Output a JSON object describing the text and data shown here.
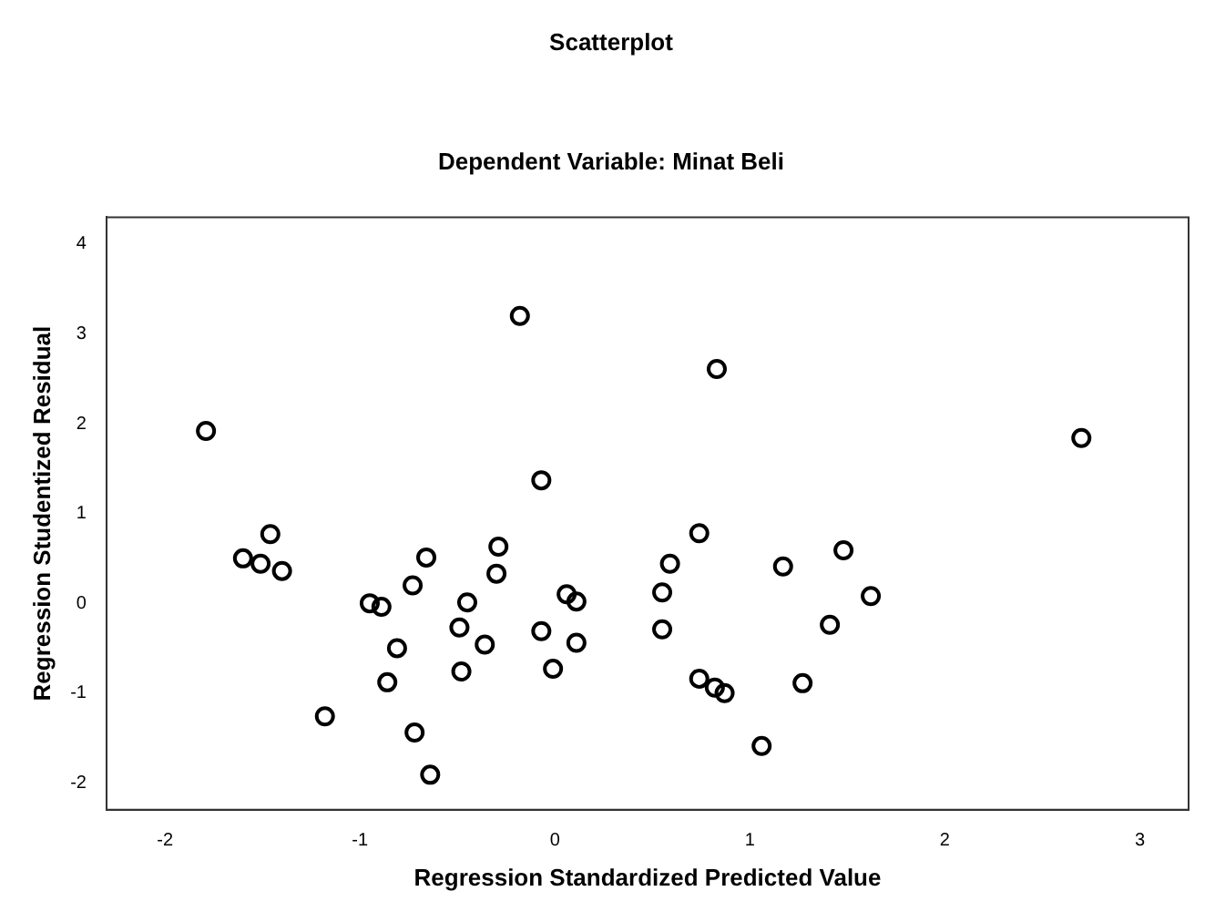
{
  "chart_data": {
    "type": "scatter",
    "title": "Scatterplot",
    "subtitle": "Dependent Variable: Minat Beli",
    "xlabel": "Regression Standardized Predicted Value",
    "ylabel": "Regression Studentized Residual",
    "x": [
      -1.79,
      -1.6,
      -1.51,
      -1.46,
      -1.4,
      -1.18,
      -0.95,
      -0.89,
      -0.86,
      -0.81,
      -0.73,
      -0.72,
      -0.66,
      -0.64,
      -0.49,
      -0.48,
      -0.45,
      -0.36,
      -0.3,
      -0.29,
      -0.18,
      -0.07,
      -0.07,
      -0.01,
      0.06,
      0.11,
      0.11,
      0.83,
      0.74,
      0.59,
      0.55,
      0.55,
      0.74,
      0.82,
      0.87,
      1.06,
      1.17,
      1.27,
      1.41,
      1.48,
      1.62,
      2.7
    ],
    "values": [
      1.92,
      0.5,
      0.44,
      0.77,
      0.36,
      -1.26,
      0.0,
      -0.04,
      -0.88,
      -0.5,
      0.2,
      -1.44,
      0.51,
      -1.91,
      -0.27,
      -0.76,
      0.01,
      -0.46,
      0.33,
      0.63,
      3.2,
      1.37,
      -0.31,
      -0.73,
      0.1,
      0.02,
      -0.44,
      2.61,
      0.78,
      0.44,
      0.12,
      -0.29,
      -0.84,
      -0.94,
      -1.0,
      -1.59,
      0.41,
      -0.89,
      -0.24,
      0.59,
      0.08,
      1.84
    ],
    "color": "#000000",
    "marker": "circle",
    "grid": false,
    "legend": false,
    "xlim": [
      -2.3,
      3.25
    ],
    "xticks": [
      -2,
      -1,
      0,
      1,
      2,
      3
    ],
    "ylim": [
      -2.3,
      4.3
    ],
    "yticks": [
      -2,
      -1,
      0,
      1,
      2,
      3,
      4
    ]
  }
}
